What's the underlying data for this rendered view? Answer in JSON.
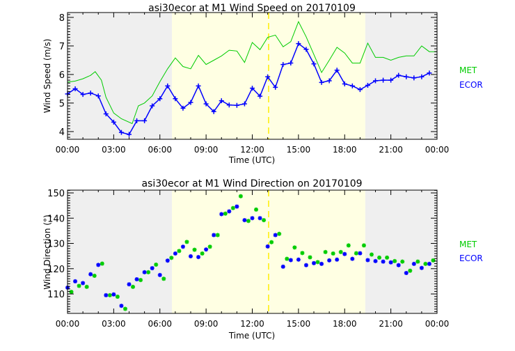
{
  "colors": {
    "met": "#00cc00",
    "ecor": "#0000ff",
    "night": "#efefef",
    "day": "#ffffe3",
    "marker": "#ffee00"
  },
  "shading": {
    "day_start_hr": 6.78,
    "day_end_hr": 19.34,
    "marker_hr": 13.06
  },
  "chart_data": [
    {
      "type": "line",
      "title": "asi30ecor at M1 Wind Speed on 20170109",
      "xlabel": "Time (UTC)",
      "ylabel": "Wind Speed (m/s)",
      "xlim": [
        0,
        24
      ],
      "ylim": [
        3.73,
        8.17
      ],
      "xticks": [
        0,
        3,
        6,
        9,
        12,
        15,
        18,
        21,
        24
      ],
      "xtick_labels": [
        "00:00",
        "03:00",
        "06:00",
        "09:00",
        "12:00",
        "15:00",
        "18:00",
        "21:00",
        "00:00"
      ],
      "yticks": [
        4,
        5,
        6,
        7,
        8
      ],
      "ytick_labels": [
        "4",
        "5",
        "6",
        "7",
        "8"
      ],
      "legend": [
        "MET",
        "ECOR"
      ],
      "legend_placement": "right",
      "series": [
        {
          "name": "MET",
          "x": [
            0,
            0.5,
            1,
            1.5,
            1.8,
            2.2,
            2.5,
            3,
            3.5,
            4.2,
            4.6,
            5,
            5.5,
            6,
            6.5,
            7,
            7.5,
            8,
            8.5,
            9,
            9.5,
            10,
            10.5,
            11,
            11.5,
            12,
            12.5,
            13,
            13.5,
            14,
            14.5,
            15,
            15.5,
            16,
            16.5,
            17,
            17.5,
            18,
            18.5,
            19,
            19.5,
            20,
            20.5,
            21,
            21.5,
            22,
            22.5,
            23,
            23.5,
            24
          ],
          "values": [
            5.73,
            5.77,
            5.85,
            5.97,
            6.1,
            5.8,
            5.2,
            4.65,
            4.45,
            4.28,
            4.9,
            5.0,
            5.25,
            5.75,
            6.2,
            6.58,
            6.28,
            6.2,
            6.67,
            6.35,
            6.5,
            6.65,
            6.85,
            6.82,
            6.42,
            7.12,
            6.87,
            7.3,
            7.38,
            6.97,
            7.15,
            7.85,
            7.32,
            6.7,
            6.07,
            6.5,
            6.95,
            6.75,
            6.4,
            6.4,
            7.1,
            6.6,
            6.6,
            6.5,
            6.6,
            6.65,
            6.65,
            7.0,
            6.8,
            6.8
          ]
        },
        {
          "name": "ECOR",
          "x": [
            0,
            0.5,
            1,
            1.5,
            2,
            2.5,
            3,
            3.5,
            4,
            4.5,
            5,
            5.5,
            6,
            6.5,
            7,
            7.5,
            8,
            8.5,
            9,
            9.5,
            10,
            10.5,
            11,
            11.5,
            12,
            12.5,
            13,
            13.5,
            14,
            14.5,
            15,
            15.5,
            16,
            16.5,
            17,
            17.5,
            18,
            18.5,
            19,
            19.5,
            20,
            20.5,
            21,
            21.5,
            22,
            22.5,
            23,
            23.5
          ],
          "values": [
            5.32,
            5.5,
            5.3,
            5.35,
            5.25,
            4.62,
            4.33,
            3.97,
            3.9,
            4.38,
            4.38,
            4.9,
            5.15,
            5.6,
            5.15,
            4.82,
            5.02,
            5.6,
            4.97,
            4.7,
            5.08,
            4.93,
            4.92,
            4.97,
            5.52,
            5.24,
            5.92,
            5.55,
            6.35,
            6.4,
            7.08,
            6.88,
            6.37,
            5.72,
            5.78,
            6.15,
            5.67,
            5.6,
            5.47,
            5.62,
            5.78,
            5.8,
            5.8,
            5.97,
            5.92,
            5.88,
            5.92,
            6.05
          ]
        }
      ]
    },
    {
      "type": "scatter",
      "title": "asi30ecor at M1 Wind Direction on 20170109",
      "xlabel": "Time (UTC)",
      "ylabel": "Wind Direction (°)",
      "xlim": [
        0,
        24
      ],
      "ylim": [
        102.3,
        151.1
      ],
      "xticks": [
        0,
        3,
        6,
        9,
        12,
        15,
        18,
        21,
        24
      ],
      "xtick_labels": [
        "00:00",
        "03:00",
        "06:00",
        "09:00",
        "12:00",
        "15:00",
        "18:00",
        "21:00",
        "00:00"
      ],
      "yticks": [
        110,
        120,
        130,
        140,
        150
      ],
      "ytick_labels": [
        "110",
        "120",
        "130",
        "140",
        "150"
      ],
      "legend": [
        "MET",
        "ECOR"
      ],
      "legend_placement": "right",
      "series": [
        {
          "name": "MET",
          "x": [
            0.25,
            0.75,
            1.25,
            1.75,
            2.25,
            2.75,
            3.25,
            3.75,
            4.25,
            4.75,
            5.25,
            5.75,
            6.25,
            6.75,
            7.25,
            7.75,
            8.25,
            8.75,
            9.25,
            9.75,
            10.25,
            10.75,
            11.25,
            11.75,
            12.25,
            12.75,
            13.25,
            13.75,
            14.25,
            14.75,
            15.25,
            15.75,
            16.25,
            16.75,
            17.25,
            17.75,
            18.25,
            18.75,
            19.25,
            19.75,
            20.25,
            20.75,
            21.25,
            21.75,
            22.25,
            22.75,
            23.25,
            23.75
          ],
          "values": [
            110.8,
            113.2,
            112.8,
            117.2,
            122,
            109.5,
            108.9,
            104.1,
            112.8,
            115.5,
            118.6,
            121.6,
            116,
            124.3,
            127,
            130.6,
            127.5,
            126,
            128.7,
            133.3,
            141.8,
            144,
            148.7,
            138.9,
            143.4,
            139.2,
            130.5,
            133.8,
            123.9,
            128.4,
            126.2,
            124.5,
            122.6,
            126.6,
            126,
            126.6,
            129.2,
            126.1,
            129.2,
            125.6,
            124.4,
            124.4,
            123,
            122.8,
            119.2,
            122.8,
            121.9,
            123.3
          ]
        },
        {
          "name": "ECOR",
          "x": [
            0,
            0.5,
            1,
            1.5,
            2,
            2.5,
            3,
            3.5,
            4,
            4.5,
            5,
            5.5,
            6,
            6.5,
            7,
            7.5,
            8,
            8.5,
            9,
            9.5,
            10,
            10.5,
            11,
            11.5,
            12,
            12.5,
            13,
            13.5,
            14,
            14.5,
            15,
            15.5,
            16,
            16.5,
            17,
            17.5,
            18,
            18.5,
            19,
            19.5,
            20,
            20.5,
            21,
            21.5,
            22,
            22.5,
            23,
            23.5
          ],
          "values": [
            112.5,
            115,
            114.3,
            117.8,
            121.5,
            109.5,
            109.8,
            105.3,
            113.8,
            115.8,
            118.6,
            120.2,
            117.5,
            123.2,
            126,
            128.7,
            124.9,
            124.6,
            127.6,
            133.3,
            141.6,
            142.7,
            144.6,
            139.2,
            140,
            140,
            128.8,
            133.3,
            120.8,
            123.4,
            123.6,
            121.4,
            122.2,
            121.9,
            123.3,
            123.6,
            125.8,
            123.9,
            126.1,
            123.4,
            123,
            122.8,
            122.5,
            121.4,
            118.3,
            121.9,
            120.3,
            121.9
          ]
        }
      ]
    }
  ]
}
